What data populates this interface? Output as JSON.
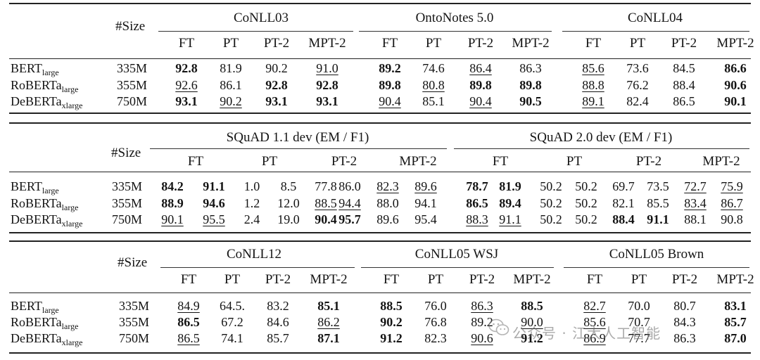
{
  "tables": [
    {
      "id": "t1",
      "size_header": "#Size",
      "groups": [
        {
          "title": "CoNLL03",
          "cols": [
            "FT",
            "PT",
            "PT-2",
            "MPT-2"
          ]
        },
        {
          "title": "OntoNotes 5.0",
          "cols": [
            "FT",
            "PT",
            "PT-2",
            "MPT-2"
          ]
        },
        {
          "title": "CoNLL04",
          "cols": [
            "FT",
            "PT",
            "PT-2",
            "MPT-2"
          ]
        }
      ],
      "rows": [
        {
          "model": "BERT",
          "sub": "large",
          "size": "335M",
          "cells": [
            {
              "v": "92.8",
              "b": true
            },
            {
              "v": "81.9"
            },
            {
              "v": "90.2"
            },
            {
              "v": "91.0",
              "u": true
            },
            {
              "v": "89.2",
              "b": true
            },
            {
              "v": "74.6"
            },
            {
              "v": "86.4",
              "u": true
            },
            {
              "v": "86.3"
            },
            {
              "v": "85.6",
              "u": true
            },
            {
              "v": "73.6"
            },
            {
              "v": "84.5"
            },
            {
              "v": "86.6",
              "b": true
            }
          ]
        },
        {
          "model": "RoBERTa",
          "sub": "large",
          "size": "355M",
          "cells": [
            {
              "v": "92.6",
              "u": true
            },
            {
              "v": "86.1"
            },
            {
              "v": "92.8",
              "b": true
            },
            {
              "v": "92.8",
              "b": true
            },
            {
              "v": "89.8",
              "b": true
            },
            {
              "v": "80.8",
              "u": true
            },
            {
              "v": "89.8",
              "b": true
            },
            {
              "v": "89.8",
              "b": true
            },
            {
              "v": "88.8",
              "u": true
            },
            {
              "v": "76.2"
            },
            {
              "v": "88.4"
            },
            {
              "v": "90.6",
              "b": true
            }
          ]
        },
        {
          "model": "DeBERTa",
          "sub": "xlarge",
          "size": "750M",
          "cells": [
            {
              "v": "93.1",
              "b": true
            },
            {
              "v": "90.2",
              "u": true
            },
            {
              "v": "93.1",
              "b": true
            },
            {
              "v": "93.1",
              "b": true
            },
            {
              "v": "90.4",
              "u": true
            },
            {
              "v": "85.1"
            },
            {
              "v": "90.4",
              "u": true
            },
            {
              "v": "90.5",
              "b": true
            },
            {
              "v": "89.1",
              "u": true
            },
            {
              "v": "82.4"
            },
            {
              "v": "86.5"
            },
            {
              "v": "90.1",
              "b": true
            }
          ]
        }
      ]
    },
    {
      "id": "t2",
      "size_header": "#Size",
      "groups": [
        {
          "title": "SQuAD 1.1 dev (EM / F1)",
          "cols": [
            "FT",
            "PT",
            "PT-2",
            "MPT-2"
          ]
        },
        {
          "title": "SQuAD 2.0 dev (EM / F1)",
          "cols": [
            "FT",
            "PT",
            "PT-2",
            "MPT-2"
          ]
        }
      ],
      "rows": [
        {
          "model": "BERT",
          "sub": "large",
          "size": "335M",
          "cells": [
            {
              "v": "84.2",
              "b": true
            },
            {
              "v": "91.1",
              "b": true
            },
            {
              "v": "1.0"
            },
            {
              "v": "8.5"
            },
            {
              "v": "77.8"
            },
            {
              "v": "86.0"
            },
            {
              "v": "82.3",
              "u": true
            },
            {
              "v": "89.6",
              "u": true
            },
            {
              "v": "78.7",
              "b": true
            },
            {
              "v": "81.9",
              "b": true
            },
            {
              "v": "50.2"
            },
            {
              "v": "50.2"
            },
            {
              "v": "69.7"
            },
            {
              "v": "73.5"
            },
            {
              "v": "72.7",
              "u": true
            },
            {
              "v": "75.9",
              "u": true
            }
          ]
        },
        {
          "model": "RoBERTa",
          "sub": "large",
          "size": "355M",
          "cells": [
            {
              "v": "88.9",
              "b": true
            },
            {
              "v": "94.6",
              "b": true
            },
            {
              "v": "1.2"
            },
            {
              "v": "12.0"
            },
            {
              "v": "88.5",
              "u": true
            },
            {
              "v": "94.4",
              "u": true
            },
            {
              "v": "88.0"
            },
            {
              "v": "94.1"
            },
            {
              "v": "86.5",
              "b": true
            },
            {
              "v": "89.4",
              "b": true
            },
            {
              "v": "50.2"
            },
            {
              "v": "50.2"
            },
            {
              "v": "82.1"
            },
            {
              "v": "85.5"
            },
            {
              "v": "83.4",
              "u": true
            },
            {
              "v": "86.7",
              "u": true
            }
          ]
        },
        {
          "model": "DeBERTa",
          "sub": "xlarge",
          "size": "750M",
          "cells": [
            {
              "v": "90.1",
              "u": true
            },
            {
              "v": "95.5",
              "u": true
            },
            {
              "v": "2.4"
            },
            {
              "v": "19.0"
            },
            {
              "v": "90.4",
              "b": true
            },
            {
              "v": "95.7",
              "b": true
            },
            {
              "v": "89.6"
            },
            {
              "v": "95.4"
            },
            {
              "v": "88.3",
              "u": true
            },
            {
              "v": "91.1",
              "u": true
            },
            {
              "v": "50.2"
            },
            {
              "v": "50.2"
            },
            {
              "v": "88.4",
              "b": true
            },
            {
              "v": "91.1",
              "b": true
            },
            {
              "v": "88.1"
            },
            {
              "v": "90.8"
            }
          ]
        }
      ]
    },
    {
      "id": "t3",
      "size_header": "#Size",
      "groups": [
        {
          "title": "CoNLL12",
          "cols": [
            "FT",
            "PT",
            "PT-2",
            "MPT-2"
          ]
        },
        {
          "title": "CoNLL05 WSJ",
          "cols": [
            "FT",
            "PT",
            "PT-2",
            "MPT-2"
          ]
        },
        {
          "title": "CoNLL05 Brown",
          "cols": [
            "FT",
            "PT",
            "PT-2",
            "MPT-2"
          ]
        }
      ],
      "rows": [
        {
          "model": "BERT",
          "sub": "large",
          "size": "335M",
          "cells": [
            {
              "v": "84.9",
              "u": true
            },
            {
              "v": "64.5."
            },
            {
              "v": "83.2"
            },
            {
              "v": "85.1",
              "b": true
            },
            {
              "v": "88.5",
              "b": true
            },
            {
              "v": "76.0"
            },
            {
              "v": "86.3",
              "u": true
            },
            {
              "v": "88.5",
              "b": true
            },
            {
              "v": "82.7",
              "u": true
            },
            {
              "v": "70.0"
            },
            {
              "v": "80.7"
            },
            {
              "v": "83.1",
              "b": true
            }
          ]
        },
        {
          "model": "RoBERTa",
          "sub": "large",
          "size": "355M",
          "cells": [
            {
              "v": "86.5",
              "b": true
            },
            {
              "v": "67.2"
            },
            {
              "v": "84.6"
            },
            {
              "v": "86.2",
              "u": true
            },
            {
              "v": "90.2",
              "b": true
            },
            {
              "v": "76.8"
            },
            {
              "v": "89.2"
            },
            {
              "v": "90.0",
              "u": true
            },
            {
              "v": "85.6",
              "u": true
            },
            {
              "v": "70.7"
            },
            {
              "v": "84.3"
            },
            {
              "v": "85.7",
              "b": true
            }
          ]
        },
        {
          "model": "DeBERTa",
          "sub": "xlarge",
          "size": "750M",
          "cells": [
            {
              "v": "86.5",
              "u": true
            },
            {
              "v": "74.1"
            },
            {
              "v": "85.7"
            },
            {
              "v": "87.1",
              "b": true
            },
            {
              "v": "91.2",
              "b": true
            },
            {
              "v": "82.3"
            },
            {
              "v": "90.6",
              "u": true
            },
            {
              "v": "91.2",
              "b": true
            },
            {
              "v": "86.9",
              "u": true
            },
            {
              "v": "77.7"
            },
            {
              "v": "86.3"
            },
            {
              "v": "87.0",
              "b": true
            }
          ]
        }
      ]
    }
  ],
  "watermark": {
    "text": "公众号 · 江大人工智能",
    "icon": "wechat-icon"
  }
}
